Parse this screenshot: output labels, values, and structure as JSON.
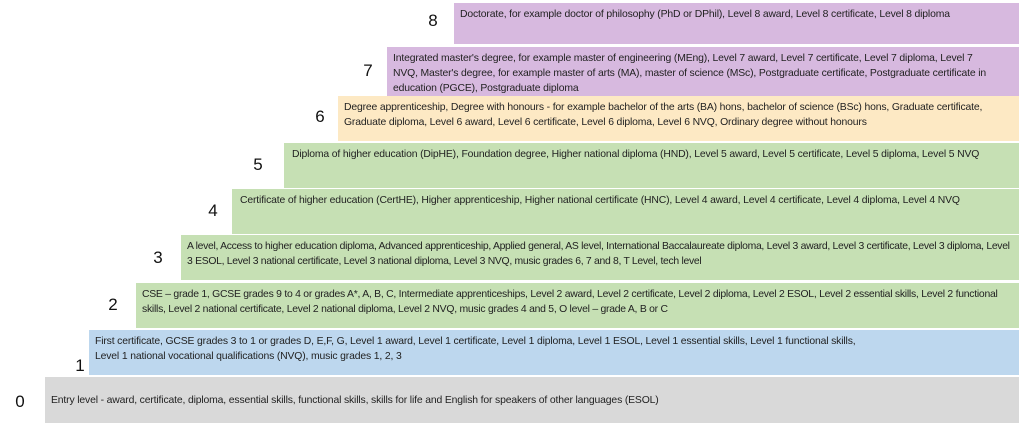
{
  "levels": [
    {
      "number": "0",
      "text": "Entry level - award, certificate, diploma, essential skills, functional skills, skills for life and English for speakers of other languages (ESOL)",
      "color": "#d9d9d9"
    },
    {
      "number": "1",
      "text": "First certificate, GCSE grades 3 to 1 or grades D, E,F, G, Level 1 award, Level 1 certificate, Level 1 diploma, Level 1 ESOL, Level 1 essential skills, Level 1 functional skills, Level 1 national vocational qualifications (NVQ), music grades 1, 2, 3",
      "color": "#bdd7ee"
    },
    {
      "number": "2",
      "text": "CSE – grade 1, GCSE grades 9 to 4 or grades A*, A, B, C, Intermediate apprenticeships, Level 2 award, Level 2 certificate, Level 2 diploma, Level 2 ESOL, Level 2 essential skills, Level 2 functional skills, Level 2 national certificate, Level 2 national diploma, Level 2 NVQ, music grades 4 and 5, O level – grade A, B or C",
      "color": "#c6e0b4"
    },
    {
      "number": "3",
      "text": "A level, Access to higher education diploma, Advanced apprenticeship, Applied general, AS level, International Baccalaureate diploma, Level 3 award, Level 3 certificate, Level 3 diploma, Level 3 ESOL, Level 3 national certificate, Level 3 national diploma, Level 3 NVQ, music grades 6, 7 and 8, T Level, tech level",
      "color": "#c6e0b4"
    },
    {
      "number": "4",
      "text": "Certificate of higher education (CertHE), Higher apprenticeship, Higher national certificate (HNC), Level 4 award, Level 4 certificate, Level 4 diploma, Level 4 NVQ",
      "color": "#c6e0b4"
    },
    {
      "number": "5",
      "text": "Diploma of higher education (DipHE), Foundation degree, Higher national diploma (HND), Level 5 award, Level 5 certificate, Level 5 diploma, Level 5 NVQ",
      "color": "#c6e0b4"
    },
    {
      "number": "6",
      "text": "Degree apprenticeship, Degree with honours - for example bachelor of the arts (BA) hons, bachelor of science (BSc) hons, Graduate certificate, Graduate diploma, Level 6 award, Level 6 certificate, Level 6 diploma, Level 6 NVQ, Ordinary degree without honours",
      "color": "#fde9c4"
    },
    {
      "number": "7",
      "text": "Integrated master's degree, for example master of engineering (MEng), Level 7 award, Level 7 certificate, Level 7 diploma, Level 7 NVQ, Master's degree, for example master of arts (MA), master of science (MSc), Postgraduate certificate, Postgraduate certificate in education (PGCE), Postgraduate diploma",
      "color": "#d7b9df"
    },
    {
      "number": "8",
      "text": "Doctorate, for example doctor of philosophy (PhD or DPhil), Level 8 award, Level 8 certificate, Level 8 diploma",
      "color": "#d7b9df"
    }
  ]
}
